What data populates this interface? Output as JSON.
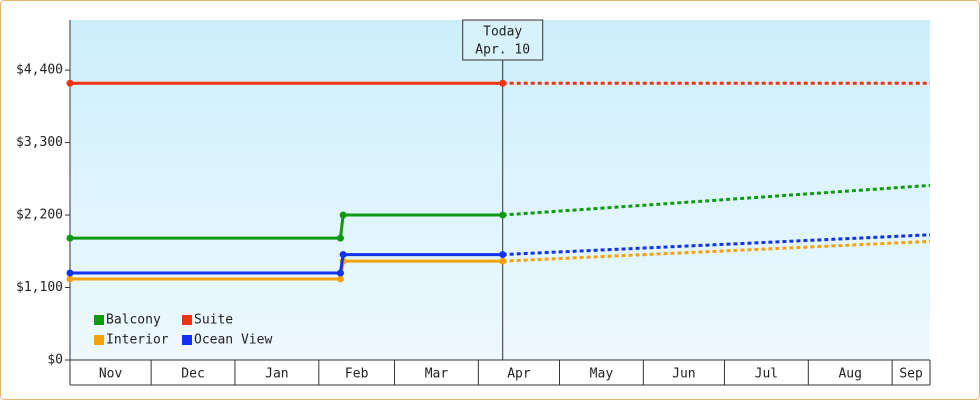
{
  "chart_data": {
    "type": "line",
    "step": true,
    "x": [
      0,
      100,
      101,
      160,
      318
    ],
    "xlim": [
      0,
      318
    ],
    "xticks": [
      {
        "value": 0,
        "label": "Nov"
      },
      {
        "value": 30,
        "label": "Dec"
      },
      {
        "value": 61,
        "label": "Jan"
      },
      {
        "value": 92,
        "label": "Feb"
      },
      {
        "value": 120,
        "label": "Mar"
      },
      {
        "value": 151,
        "label": "Apr"
      },
      {
        "value": 181,
        "label": "May"
      },
      {
        "value": 212,
        "label": "Jun"
      },
      {
        "value": 242,
        "label": "Jul"
      },
      {
        "value": 273,
        "label": "Aug"
      },
      {
        "value": 304,
        "label": "Sep"
      }
    ],
    "ylim": [
      0,
      5160
    ],
    "yticks": [
      {
        "value": 0,
        "label": "$0"
      },
      {
        "value": 1100,
        "label": "$1,100"
      },
      {
        "value": 2200,
        "label": "$2,200"
      },
      {
        "value": 3300,
        "label": "$3,300"
      },
      {
        "value": 4400,
        "label": "$4,400"
      }
    ],
    "today": {
      "x": 160,
      "label": "Today",
      "date": "Apr. 10"
    },
    "legend": "lower left",
    "series": [
      {
        "name": "Balcony",
        "color": "#119911",
        "values": [
          1850,
          1850,
          2200,
          2200,
          2650
        ]
      },
      {
        "name": "Suite",
        "color": "#ee3311",
        "values": [
          4200,
          4200,
          4200,
          4200,
          4200
        ]
      },
      {
        "name": "Interior",
        "color": "#f5a00f",
        "values": [
          1230,
          1230,
          1500,
          1500,
          1800
        ]
      },
      {
        "name": "Ocean View",
        "color": "#1133ee",
        "values": [
          1320,
          1320,
          1600,
          1600,
          1900
        ]
      }
    ]
  }
}
